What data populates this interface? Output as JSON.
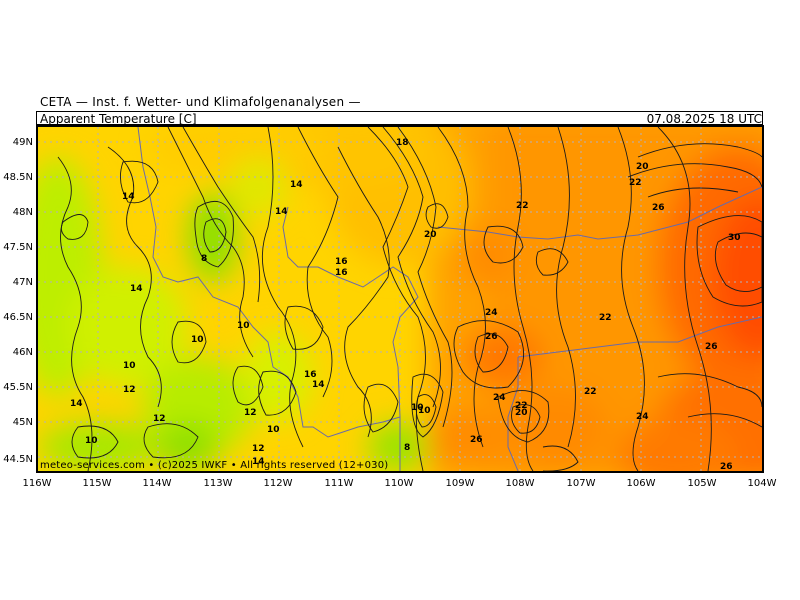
{
  "header": {
    "source": "CETA — Inst. f. Wetter- und Klimafolgenanalysen —",
    "parameter": "Apparent Temperature [C]",
    "datetime": "07.08.2025  18 UTC"
  },
  "credit": "meteo-services.com • (c)2025 IWKF • All rights reserved (12+030)",
  "axes": {
    "y_ticks": [
      "49N",
      "48.5N",
      "48N",
      "47.5N",
      "47N",
      "46.5N",
      "46N",
      "45.5N",
      "45N",
      "44.5N"
    ],
    "x_ticks": [
      "116W",
      "115W",
      "114W",
      "113W",
      "112W",
      "111W",
      "110W",
      "109W",
      "108W",
      "107W",
      "106W",
      "105W",
      "104W"
    ]
  },
  "colors": {
    "cool_green": "#8fe000",
    "lime": "#c8f000",
    "yellow": "#ffe000",
    "gold": "#ffc800",
    "orange": "#ffa000",
    "dark_orange": "#ff8400",
    "red_orange": "#ff5a00",
    "contour": "#1a1a1a",
    "border": "#6a6aa8"
  },
  "contour_labels": [
    "18",
    "14",
    "14",
    "14",
    "8",
    "14",
    "10",
    "10",
    "10",
    "12",
    "14",
    "12",
    "10",
    "16",
    "16",
    "16",
    "14",
    "12",
    "10",
    "12",
    "14",
    "10",
    "10",
    "8",
    "20",
    "22",
    "20",
    "22",
    "26",
    "24",
    "26",
    "22",
    "26",
    "30",
    "24",
    "22",
    "24",
    "22",
    "20",
    "26",
    "26"
  ]
}
